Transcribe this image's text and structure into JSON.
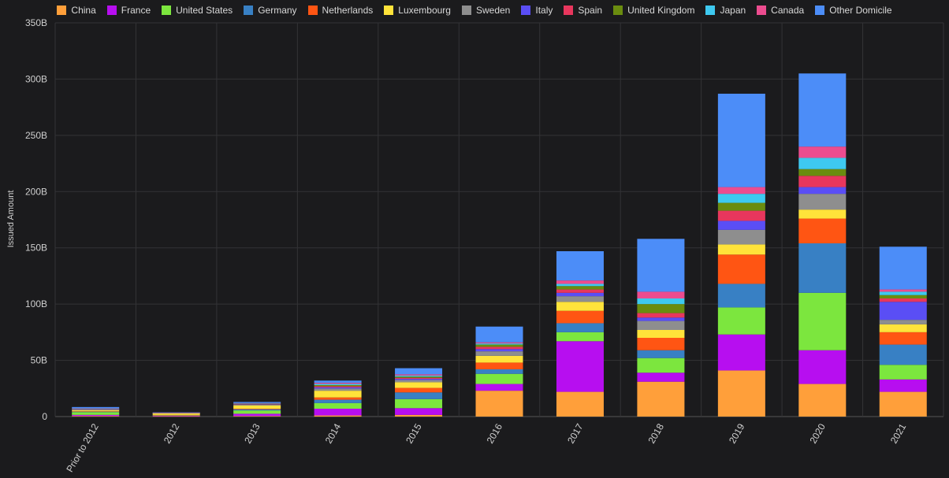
{
  "chart_data": {
    "type": "bar",
    "stacked": true,
    "title": "",
    "xlabel": "",
    "ylabel": "Issued Amount",
    "ylim": [
      0,
      350
    ],
    "y_ticks": [
      0,
      50,
      100,
      150,
      200,
      250,
      300,
      350
    ],
    "y_tick_labels": [
      "0",
      "50B",
      "100B",
      "150B",
      "200B",
      "250B",
      "300B",
      "350B"
    ],
    "legend_position": "top",
    "grid": true,
    "categories": [
      "Prior to 2012",
      "2012",
      "2013",
      "2014",
      "2015",
      "2016",
      "2017",
      "2018",
      "2019",
      "2020",
      "2021"
    ],
    "series": [
      {
        "name": "China",
        "color": "#ff9f3a",
        "values": [
          0.5,
          0.3,
          0.5,
          1,
          1.5,
          23,
          22,
          31,
          41,
          29,
          22
        ]
      },
      {
        "name": "France",
        "color": "#b70ef0",
        "values": [
          1,
          0.5,
          2,
          6,
          6,
          6,
          45,
          8,
          32,
          30,
          11
        ]
      },
      {
        "name": "United States",
        "color": "#7ce63e",
        "values": [
          2.5,
          0.5,
          3,
          5,
          8,
          9,
          8,
          13,
          24,
          51,
          13
        ]
      },
      {
        "name": "Germany",
        "color": "#3880c4",
        "values": [
          0.5,
          0.1,
          1,
          3,
          6,
          4,
          8,
          7,
          21,
          44,
          18
        ]
      },
      {
        "name": "Netherlands",
        "color": "#ff5513",
        "values": [
          0.2,
          0.1,
          0.5,
          2,
          4,
          6,
          11,
          11,
          26,
          22,
          11
        ]
      },
      {
        "name": "Luxembourg",
        "color": "#ffe33a",
        "values": [
          1,
          1.5,
          3,
          6,
          5,
          6,
          8,
          7,
          9,
          8,
          7
        ]
      },
      {
        "name": "Sweden",
        "color": "#8e8e8e",
        "values": [
          0.5,
          0.1,
          0.5,
          2,
          2,
          4,
          5,
          8,
          13,
          14,
          4
        ]
      },
      {
        "name": "Italy",
        "color": "#5a4ef5",
        "values": [
          0.2,
          0.1,
          0.3,
          1,
          1,
          2,
          3,
          3,
          8,
          6,
          16
        ]
      },
      {
        "name": "Spain",
        "color": "#e8365d",
        "values": [
          0.2,
          0.1,
          0.3,
          1,
          1,
          2,
          3,
          4,
          9,
          10,
          3
        ]
      },
      {
        "name": "United Kingdom",
        "color": "#6a8c0f",
        "values": [
          0.2,
          0.1,
          0.3,
          1,
          1,
          2,
          3,
          8,
          7,
          6,
          3
        ]
      },
      {
        "name": "Japan",
        "color": "#3ec9f0",
        "values": [
          0.2,
          0.1,
          0.3,
          1,
          1,
          1,
          2,
          5,
          8,
          10,
          3
        ]
      },
      {
        "name": "Canada",
        "color": "#ec4c8f",
        "values": [
          0.2,
          0.1,
          0.3,
          1,
          1,
          1,
          3,
          6,
          6,
          10,
          2
        ]
      },
      {
        "name": "Other Domicile",
        "color": "#4c8df8",
        "values": [
          1.3,
          0.1,
          1,
          2,
          5.5,
          14,
          26,
          47,
          83,
          65,
          38
        ]
      }
    ]
  }
}
